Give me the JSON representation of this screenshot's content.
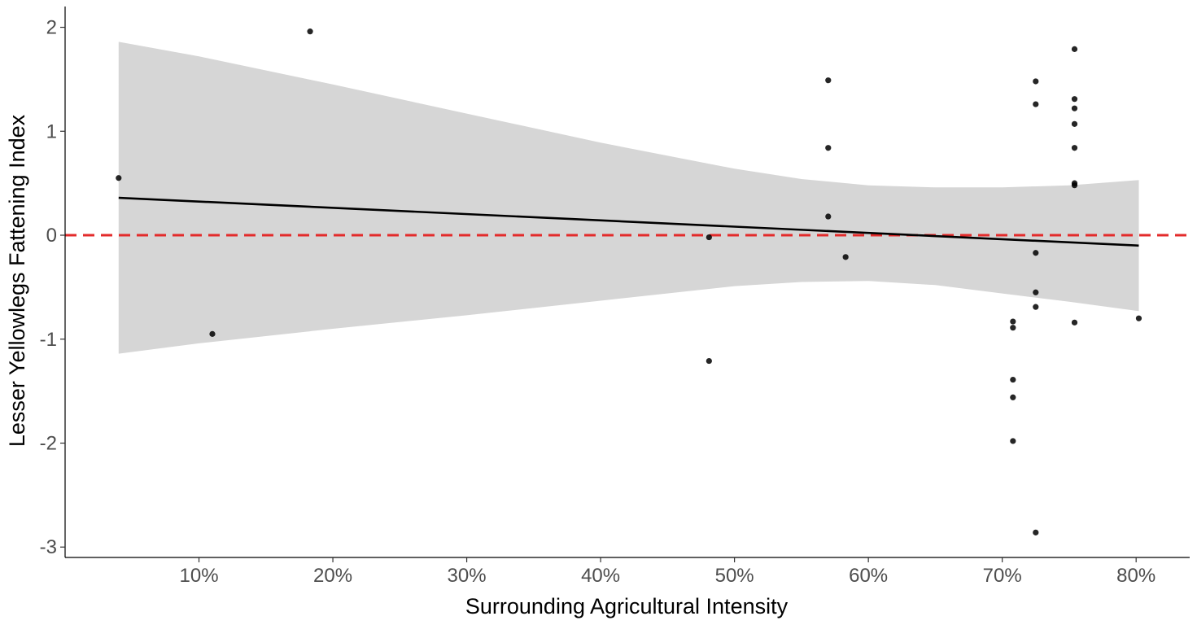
{
  "chart_data": {
    "type": "scatter",
    "xlabel": "Surrounding Agricultural Intensity",
    "ylabel": "Lesser Yellowlegs Fattening Index",
    "xlim": [
      0.0,
      0.84
    ],
    "ylim": [
      -3.1,
      2.2
    ],
    "x_ticks": [
      0.1,
      0.2,
      0.3,
      0.4,
      0.5,
      0.6,
      0.7,
      0.8
    ],
    "x_tick_labels": [
      "10%",
      "20%",
      "30%",
      "40%",
      "50%",
      "60%",
      "70%",
      "80%"
    ],
    "y_ticks": [
      -3,
      -2,
      -1,
      0,
      1,
      2
    ],
    "y_tick_labels": [
      "-3",
      "-2",
      "-1",
      "0",
      "1",
      "2"
    ],
    "grid": false,
    "reference_line": {
      "y": 0,
      "style": "dashed",
      "color": "#e32b2b"
    },
    "points": [
      {
        "x": 0.04,
        "y": 0.55
      },
      {
        "x": 0.11,
        "y": -0.95
      },
      {
        "x": 0.183,
        "y": 1.96
      },
      {
        "x": 0.481,
        "y": -0.02
      },
      {
        "x": 0.481,
        "y": -1.21
      },
      {
        "x": 0.57,
        "y": 1.49
      },
      {
        "x": 0.57,
        "y": 0.84
      },
      {
        "x": 0.57,
        "y": 0.18
      },
      {
        "x": 0.583,
        "y": -0.21
      },
      {
        "x": 0.708,
        "y": -0.83
      },
      {
        "x": 0.708,
        "y": -0.89
      },
      {
        "x": 0.708,
        "y": -1.39
      },
      {
        "x": 0.708,
        "y": -1.56
      },
      {
        "x": 0.708,
        "y": -1.98
      },
      {
        "x": 0.725,
        "y": 1.48
      },
      {
        "x": 0.725,
        "y": 1.26
      },
      {
        "x": 0.725,
        "y": -0.17
      },
      {
        "x": 0.725,
        "y": -0.55
      },
      {
        "x": 0.725,
        "y": -0.69
      },
      {
        "x": 0.725,
        "y": -2.86
      },
      {
        "x": 0.754,
        "y": 1.79
      },
      {
        "x": 0.754,
        "y": 1.31
      },
      {
        "x": 0.754,
        "y": 1.22
      },
      {
        "x": 0.754,
        "y": 1.07
      },
      {
        "x": 0.754,
        "y": 0.84
      },
      {
        "x": 0.754,
        "y": 0.5
      },
      {
        "x": 0.754,
        "y": 0.48
      },
      {
        "x": 0.754,
        "y": -0.84
      },
      {
        "x": 0.802,
        "y": -0.8
      }
    ],
    "fit_line": {
      "x": [
        0.04,
        0.802
      ],
      "y": [
        0.36,
        -0.1
      ]
    },
    "confidence_band": {
      "x": [
        0.04,
        0.1,
        0.2,
        0.3,
        0.4,
        0.5,
        0.55,
        0.6,
        0.65,
        0.7,
        0.75,
        0.802
      ],
      "upper": [
        1.86,
        1.72,
        1.45,
        1.17,
        0.89,
        0.64,
        0.54,
        0.48,
        0.46,
        0.46,
        0.48,
        0.53
      ],
      "lower": [
        -1.14,
        -1.04,
        -0.9,
        -0.77,
        -0.63,
        -0.49,
        -0.45,
        -0.44,
        -0.48,
        -0.56,
        -0.64,
        -0.73
      ]
    },
    "colors": {
      "points": "#000000",
      "fit_line": "#000000",
      "band": "#d6d6d6",
      "axis": "#000000",
      "tick_label": "#4d4d4d"
    }
  }
}
